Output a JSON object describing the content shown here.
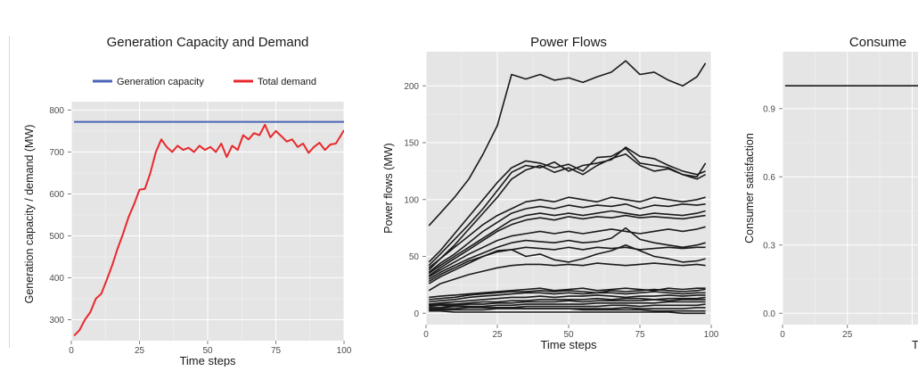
{
  "chart_data": [
    {
      "type": "line",
      "title": "Generation Capacity and Demand",
      "xlabel": "Time steps",
      "ylabel": "Generation capacity / demand (MW)",
      "xlim": [
        0,
        100
      ],
      "ylim": [
        250,
        820
      ],
      "x_ticks": [
        0,
        25,
        50,
        75,
        100
      ],
      "y_ticks": [
        300,
        400,
        500,
        600,
        700,
        800
      ],
      "grid": true,
      "legend_position": "top",
      "series": [
        {
          "name": "Generation capacity",
          "color": "#4a65b5",
          "x": [
            1,
            100
          ],
          "values": [
            772,
            772
          ]
        },
        {
          "name": "Total demand",
          "color": "#e8282b",
          "x": [
            1,
            3,
            5,
            7,
            9,
            11,
            13,
            15,
            17,
            19,
            21,
            23,
            25,
            27,
            29,
            31,
            33,
            35,
            37,
            39,
            41,
            43,
            45,
            47,
            49,
            51,
            53,
            55,
            57,
            59,
            61,
            63,
            65,
            67,
            69,
            71,
            73,
            75,
            77,
            79,
            81,
            83,
            85,
            87,
            89,
            91,
            93,
            95,
            97,
            100
          ],
          "values": [
            262,
            275,
            300,
            318,
            350,
            362,
            395,
            430,
            470,
            505,
            545,
            575,
            610,
            612,
            650,
            700,
            730,
            712,
            700,
            715,
            705,
            710,
            700,
            715,
            705,
            712,
            700,
            720,
            688,
            715,
            705,
            740,
            730,
            745,
            740,
            765,
            735,
            750,
            738,
            725,
            730,
            712,
            720,
            698,
            712,
            722,
            705,
            718,
            720,
            752
          ]
        }
      ]
    },
    {
      "type": "line",
      "title": "Power Flows",
      "xlabel": "Time steps",
      "ylabel": "Power flows (MW)",
      "xlim": [
        0,
        100
      ],
      "ylim": [
        -10,
        230
      ],
      "x_ticks": [
        0,
        25,
        50,
        75,
        100
      ],
      "y_ticks": [
        0,
        50,
        100,
        150,
        200
      ],
      "grid": true,
      "color": "#1a1a1a",
      "x": [
        1,
        5,
        10,
        15,
        20,
        25,
        30,
        35,
        40,
        45,
        50,
        55,
        60,
        65,
        70,
        75,
        80,
        85,
        90,
        95,
        98
      ],
      "series": [
        {
          "values": [
            77,
            88,
            102,
            118,
            140,
            165,
            210,
            206,
            210,
            205,
            207,
            203,
            208,
            212,
            222,
            210,
            212,
            205,
            200,
            208,
            220
          ]
        },
        {
          "values": [
            45,
            55,
            70,
            85,
            100,
            115,
            128,
            134,
            132,
            128,
            131,
            125,
            137,
            138,
            145,
            132,
            130,
            128,
            122,
            120,
            132
          ]
        },
        {
          "values": [
            42,
            52,
            65,
            78,
            92,
            108,
            124,
            130,
            128,
            133,
            125,
            130,
            132,
            135,
            146,
            138,
            136,
            130,
            125,
            122,
            125
          ]
        },
        {
          "values": [
            38,
            48,
            60,
            74,
            88,
            102,
            118,
            126,
            130,
            124,
            128,
            122,
            130,
            136,
            140,
            130,
            125,
            127,
            122,
            118,
            122
          ]
        },
        {
          "values": [
            40,
            48,
            58,
            68,
            78,
            86,
            92,
            98,
            100,
            98,
            102,
            100,
            98,
            102,
            100,
            98,
            102,
            100,
            98,
            100,
            102
          ]
        },
        {
          "values": [
            36,
            44,
            52,
            62,
            72,
            80,
            88,
            92,
            94,
            92,
            95,
            93,
            95,
            94,
            96,
            92,
            95,
            94,
            96,
            95,
            96
          ]
        },
        {
          "values": [
            35,
            42,
            50,
            58,
            66,
            74,
            82,
            86,
            88,
            86,
            88,
            86,
            88,
            90,
            88,
            86,
            88,
            87,
            86,
            88,
            90
          ]
        },
        {
          "values": [
            33,
            40,
            48,
            56,
            64,
            72,
            78,
            82,
            84,
            82,
            85,
            83,
            85,
            84,
            86,
            84,
            85,
            84,
            83,
            85,
            86
          ]
        },
        {
          "values": [
            32,
            38,
            45,
            52,
            58,
            64,
            68,
            70,
            72,
            70,
            72,
            70,
            72,
            74,
            72,
            70,
            72,
            74,
            72,
            74,
            76
          ]
        },
        {
          "values": [
            30,
            36,
            42,
            48,
            53,
            58,
            62,
            64,
            63,
            62,
            64,
            62,
            63,
            66,
            75,
            65,
            62,
            60,
            58,
            60,
            62
          ]
        },
        {
          "values": [
            28,
            34,
            40,
            46,
            50,
            54,
            56,
            58,
            57,
            56,
            58,
            56,
            58,
            57,
            58,
            56,
            57,
            58,
            57,
            58,
            58
          ]
        },
        {
          "values": [
            26,
            32,
            38,
            44,
            50,
            55,
            56,
            50,
            52,
            47,
            45,
            48,
            52,
            55,
            60,
            55,
            50,
            48,
            45,
            46,
            48
          ]
        },
        {
          "values": [
            20,
            26,
            30,
            34,
            37,
            40,
            42,
            43,
            43,
            42,
            43,
            42,
            44,
            43,
            42,
            43,
            44,
            43,
            42,
            43,
            42
          ]
        },
        {
          "values": [
            14,
            15,
            16,
            17,
            18,
            19,
            20,
            21,
            22,
            20,
            21,
            22,
            20,
            21,
            22,
            21,
            20,
            22,
            21,
            22,
            22
          ]
        },
        {
          "values": [
            12,
            13,
            14,
            16,
            17,
            18,
            19,
            19,
            20,
            19,
            20,
            19,
            18,
            20,
            19,
            20,
            21,
            20,
            19,
            20,
            21
          ]
        },
        {
          "values": [
            10,
            11,
            12,
            14,
            15,
            16,
            17,
            18,
            18,
            17,
            18,
            17,
            18,
            18,
            17,
            18,
            19,
            18,
            17,
            18,
            18
          ]
        },
        {
          "values": [
            8,
            9,
            10,
            11,
            12,
            13,
            14,
            14,
            15,
            14,
            15,
            15,
            16,
            15,
            14,
            15,
            15,
            16,
            15,
            16,
            16
          ]
        },
        {
          "values": [
            7,
            8,
            8,
            9,
            10,
            10,
            11,
            11,
            12,
            12,
            12,
            12,
            13,
            12,
            13,
            13,
            12,
            13,
            13,
            13,
            14
          ]
        },
        {
          "values": [
            6,
            7,
            7,
            8,
            8,
            9,
            9,
            10,
            10,
            10,
            11,
            10,
            11,
            11,
            11,
            11,
            12,
            11,
            12,
            12,
            12
          ]
        },
        {
          "values": [
            5,
            5,
            6,
            6,
            6,
            7,
            7,
            8,
            8,
            8,
            8,
            8,
            9,
            9,
            9,
            9,
            9,
            10,
            10,
            10,
            10
          ]
        },
        {
          "values": [
            4,
            4,
            4,
            5,
            5,
            5,
            5,
            6,
            6,
            6,
            6,
            6,
            6,
            7,
            7,
            6,
            7,
            7,
            7,
            7,
            8
          ]
        },
        {
          "values": [
            3,
            3,
            3,
            3,
            3,
            4,
            4,
            4,
            4,
            4,
            4,
            4,
            4,
            4,
            5,
            4,
            4,
            4,
            4,
            5,
            5
          ]
        },
        {
          "values": [
            8,
            7,
            6,
            6,
            5,
            5,
            5,
            4,
            4,
            4,
            4,
            3,
            3,
            3,
            3,
            3,
            2,
            2,
            2,
            2,
            2
          ]
        },
        {
          "values": [
            2,
            2,
            1,
            1,
            1,
            1,
            1,
            1,
            1,
            1,
            1,
            1,
            1,
            1,
            1,
            1,
            1,
            1,
            0,
            0,
            0
          ]
        }
      ]
    },
    {
      "type": "line",
      "title": "Consume",
      "xlabel": "Tim",
      "ylabel": "Consumer satisfaction",
      "xlim": [
        0,
        100
      ],
      "ylim": [
        -0.05,
        1.15
      ],
      "x_ticks": [
        0,
        25
      ],
      "y_ticks": [
        0.0,
        0.3,
        0.6,
        0.9
      ],
      "y_tick_labels": [
        "0.0",
        "0.3",
        "0.6",
        "0.9"
      ],
      "grid": true,
      "color": "#1a1a1a",
      "series": [
        {
          "x": [
            1,
            100
          ],
          "values": [
            1.0,
            1.0
          ]
        }
      ]
    }
  ]
}
